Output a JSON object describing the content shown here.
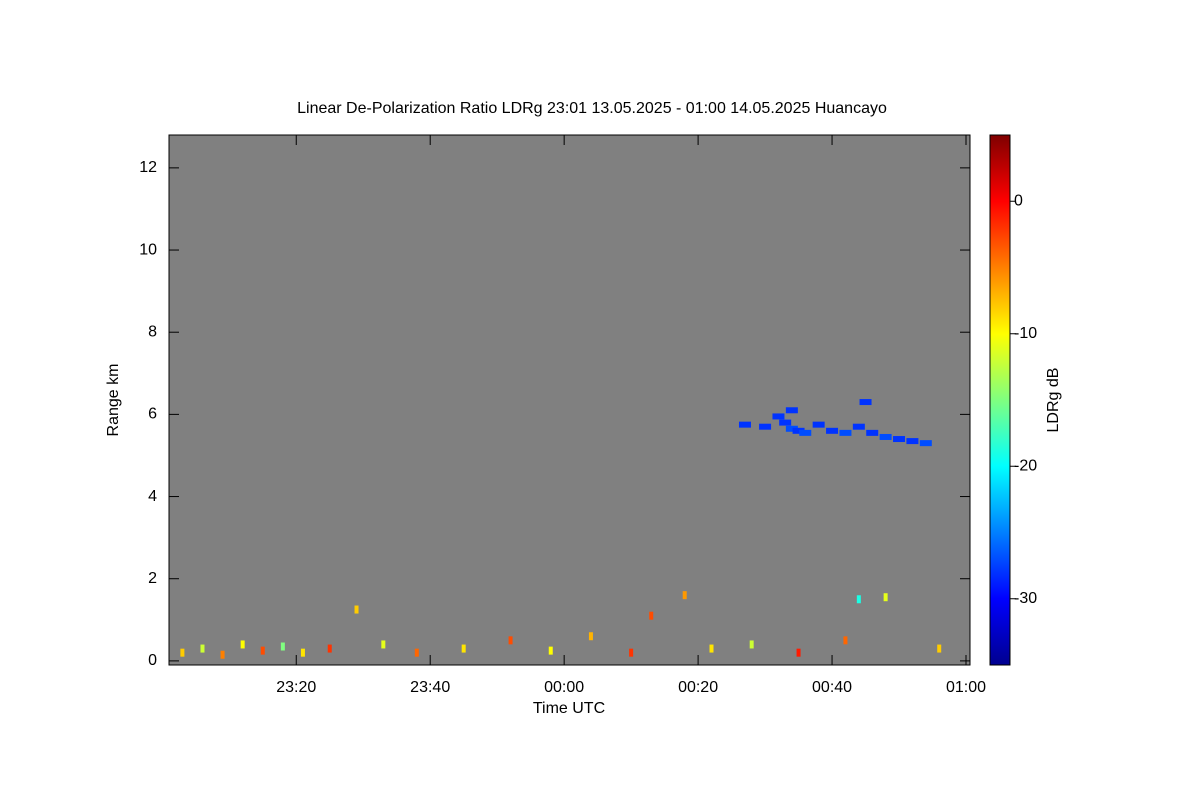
{
  "chart_data": {
    "type": "heatmap",
    "title": "Linear De-Polarization Ratio LDRg   23:01 13.05.2025 - 01:00 14.05.2025 Huancayo",
    "x_label": "Time UTC",
    "y_label": "Range km",
    "colorbar_label": "LDRg dB",
    "background": "#808080",
    "colormap": "jet",
    "xlim": [
      "23:01",
      "01:00"
    ],
    "xticks": [
      "23:20",
      "23:40",
      "00:00",
      "00:20",
      "00:40",
      "01:00"
    ],
    "ylim": [
      -0.1,
      12.8
    ],
    "yticks": [
      0,
      2,
      4,
      6,
      8,
      10,
      12
    ],
    "zlim": [
      -35,
      5
    ],
    "zticks": [
      0,
      -10,
      -20,
      -30
    ],
    "x": [
      "00:32",
      "00:33",
      "00:34",
      "00:35",
      "00:36",
      "00:38",
      "00:40",
      "00:42",
      "00:44",
      "00:46",
      "00:48",
      "00:50",
      "00:52",
      "00:54",
      "00:30",
      "00:34",
      "00:45",
      "00:27",
      "23:03",
      "23:06",
      "23:09",
      "23:12",
      "23:15",
      "23:18",
      "23:21",
      "23:25",
      "23:29",
      "23:33",
      "23:38",
      "23:45",
      "23:52",
      "23:58",
      "00:04",
      "00:10",
      "00:13",
      "00:18",
      "00:22",
      "00:28",
      "00:35",
      "00:42",
      "00:48",
      "00:44",
      "00:56"
    ],
    "y": [
      5.95,
      5.8,
      5.65,
      5.6,
      5.55,
      5.75,
      5.6,
      5.55,
      5.7,
      5.55,
      5.45,
      5.4,
      5.35,
      5.3,
      5.7,
      6.1,
      6.3,
      5.75,
      0.2,
      0.3,
      0.15,
      0.4,
      0.25,
      0.35,
      0.2,
      0.3,
      1.25,
      0.4,
      0.2,
      0.3,
      0.5,
      0.25,
      0.6,
      0.2,
      1.1,
      1.6,
      0.3,
      0.4,
      0.2,
      0.5,
      1.55,
      1.5,
      0.3
    ],
    "values": [
      -28,
      -28,
      -27,
      -28,
      -27,
      -28,
      -28,
      -27,
      -28,
      -28,
      -27,
      -28,
      -28,
      -27,
      -28,
      -28,
      -28,
      -28,
      -8,
      -12,
      -5,
      -10,
      -3,
      -15,
      -9,
      -2,
      -8,
      -11,
      -4,
      -9,
      -3,
      -10,
      -7,
      -2,
      -3,
      -6,
      -9,
      -12,
      -1,
      -4,
      -11,
      -19,
      -8
    ]
  }
}
